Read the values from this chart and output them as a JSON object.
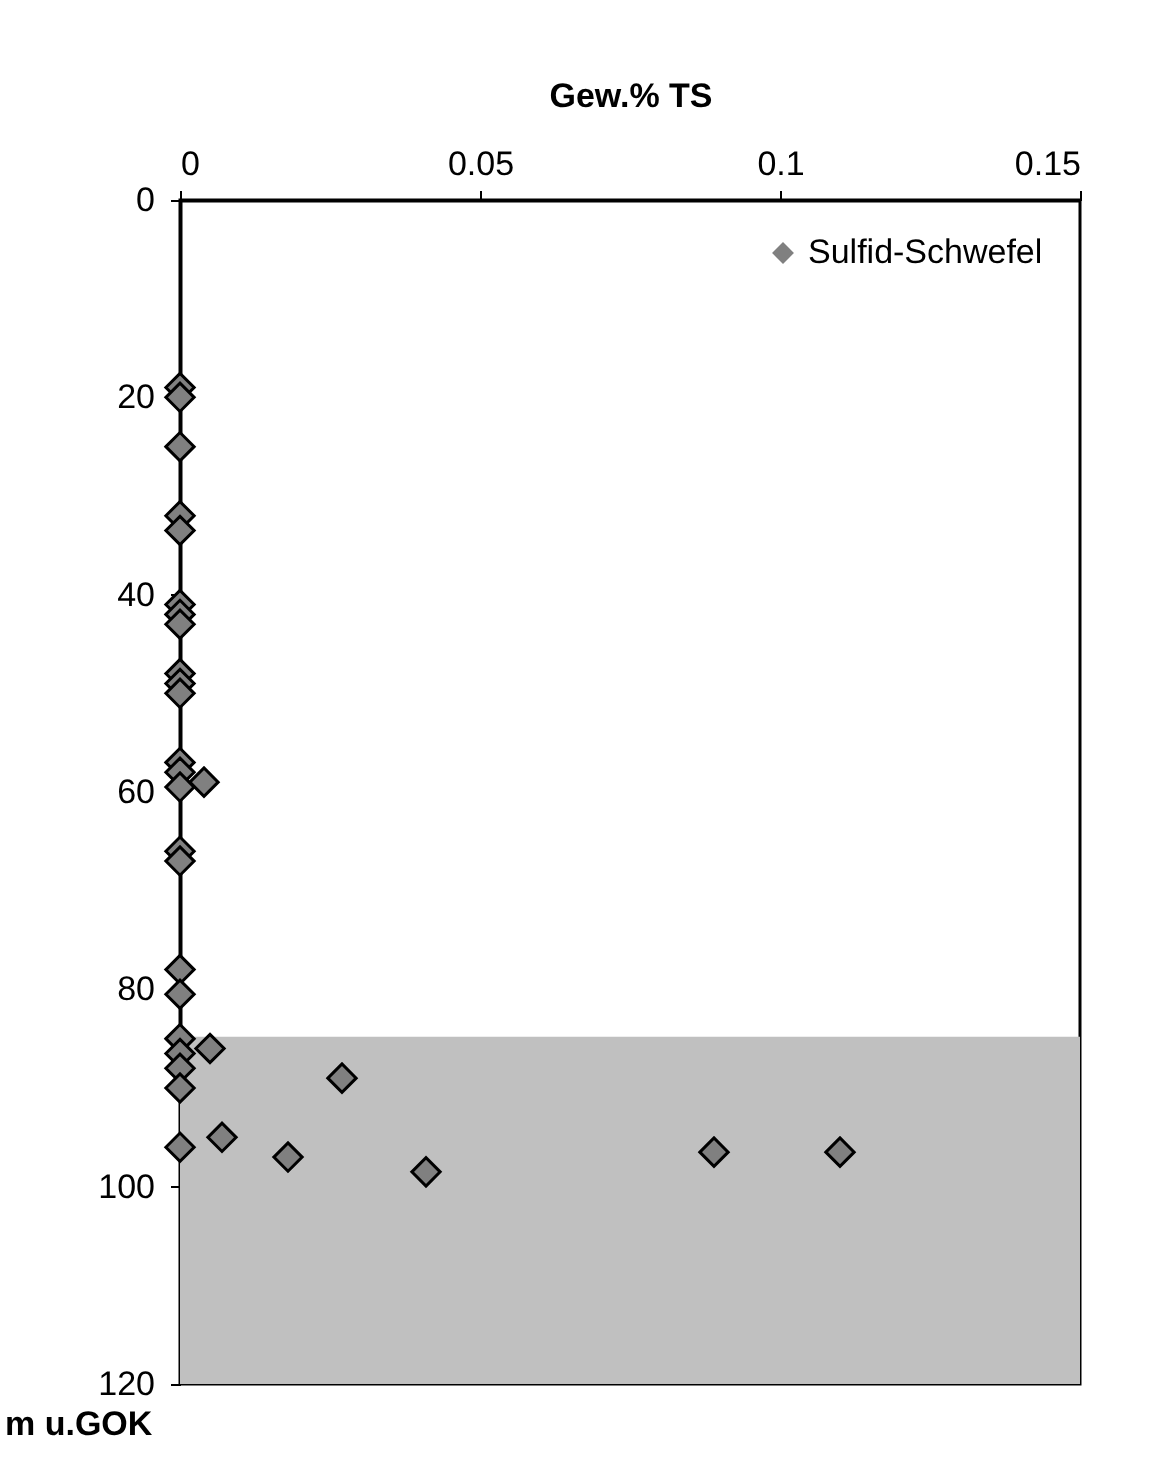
{
  "chart_data": {
    "type": "scatter",
    "xlabel": "Gew.% TS",
    "ylabel": "m u.GOK",
    "xlim": [
      0,
      0.15
    ],
    "xticks": [
      0,
      0.05,
      0.1,
      0.15
    ],
    "ylim": [
      120,
      0
    ],
    "yticks": [
      0,
      20,
      40,
      60,
      80,
      100,
      120
    ],
    "grid": false,
    "legend": "top right",
    "marker": "diamond",
    "bands": [
      {
        "axis": "y",
        "from": 84.8,
        "to": 120,
        "color": "#c0c0c0"
      }
    ],
    "series": [
      {
        "name": "Sulfid-Schwefel",
        "color": "#808080",
        "x": [
          0,
          0,
          0,
          0,
          0,
          0,
          0,
          0,
          0,
          0,
          0,
          0,
          0,
          0,
          0.004,
          0,
          0,
          0,
          0,
          0,
          0,
          0,
          0.005,
          0,
          0.027,
          0.007,
          0,
          0.018,
          0.041,
          0.089,
          0.11
        ],
        "values": [
          19,
          20,
          25,
          32,
          33.5,
          41,
          42,
          43,
          48,
          49,
          50,
          57,
          58,
          59.5,
          59,
          66,
          67,
          78,
          80.5,
          85,
          86.5,
          88,
          86,
          90,
          89,
          95,
          96,
          97,
          98.5,
          96.5,
          96.5
        ]
      }
    ]
  }
}
